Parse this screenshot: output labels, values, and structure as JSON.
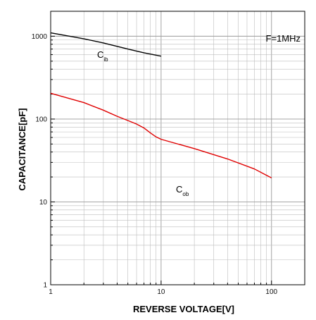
{
  "chart_data": {
    "type": "line",
    "xscale": "log",
    "yscale": "log",
    "xlim": [
      1,
      200
    ],
    "ylim": [
      1,
      2000
    ],
    "grid": true,
    "xlabel": "REVERSE VOLTAGE[V]",
    "ylabel": "CAPACITANCE[pF]",
    "x_ticks": [
      "1",
      "10",
      "100"
    ],
    "y_ticks": [
      "1",
      "10",
      "100",
      "1000"
    ],
    "annotation": "F=1MHz",
    "series": [
      {
        "name": "C",
        "name_sub": "ib",
        "color": "#000000",
        "points": [
          [
            1,
            1100
          ],
          [
            2,
            930
          ],
          [
            3,
            830
          ],
          [
            5,
            700
          ],
          [
            7,
            630
          ],
          [
            10,
            575
          ]
        ]
      },
      {
        "name": "C",
        "name_sub": "ob",
        "color": "#e00000",
        "points": [
          [
            1,
            205
          ],
          [
            2,
            158
          ],
          [
            3,
            128
          ],
          [
            4,
            108
          ],
          [
            5,
            96
          ],
          [
            6,
            87
          ],
          [
            7,
            78
          ],
          [
            8,
            68
          ],
          [
            9,
            61
          ],
          [
            10,
            57
          ],
          [
            20,
            44
          ],
          [
            40,
            33
          ],
          [
            70,
            25
          ],
          [
            100,
            19.5
          ]
        ]
      }
    ]
  }
}
